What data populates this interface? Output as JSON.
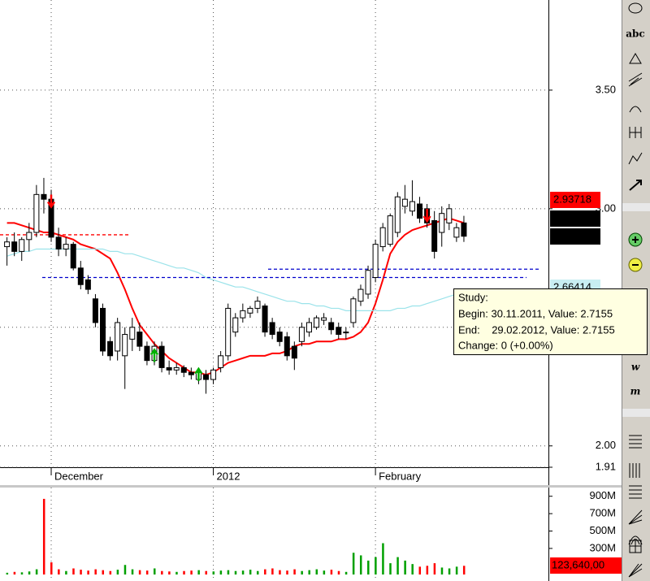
{
  "chart_data": [
    {
      "type": "candlestick",
      "categories": [
        null,
        null,
        null,
        null,
        null,
        null,
        "December",
        null,
        null,
        null,
        null,
        null,
        null,
        null,
        null,
        null,
        null,
        null,
        null,
        null,
        null,
        null,
        null,
        null,
        null,
        null,
        null,
        null,
        "2012",
        null,
        null,
        null,
        null,
        null,
        null,
        null,
        null,
        null,
        null,
        null,
        null,
        null,
        null,
        null,
        null,
        null,
        null,
        null,
        null,
        null,
        "February",
        null,
        null,
        null,
        null,
        null,
        null,
        null,
        null,
        null,
        null,
        null,
        null
      ],
      "open": [
        2.84,
        2.86,
        2.82,
        2.87,
        2.9,
        3.06,
        3.04,
        2.88,
        2.83,
        2.85,
        2.75,
        2.7,
        2.62,
        2.58,
        2.44,
        2.4,
        2.38,
        2.45,
        2.48,
        2.42,
        2.36,
        2.42,
        2.33,
        2.32,
        2.33,
        2.31,
        2.28,
        2.3,
        2.28,
        2.33,
        2.38,
        2.48,
        2.54,
        2.56,
        2.58,
        2.59,
        2.52,
        2.48,
        2.46,
        2.42,
        2.44,
        2.48,
        2.5,
        2.53,
        2.52,
        2.5,
        2.48,
        2.52,
        2.61,
        2.64,
        2.71,
        2.84,
        2.85,
        2.9,
        3.01,
        2.99,
        3.02,
        3.0,
        2.95,
        2.9,
        2.94,
        2.88,
        2.94
      ],
      "high": [
        2.88,
        2.9,
        2.88,
        2.94,
        3.1,
        3.13,
        3.08,
        2.92,
        2.88,
        2.86,
        2.78,
        2.72,
        2.64,
        2.6,
        2.46,
        2.54,
        2.5,
        2.54,
        2.52,
        2.44,
        2.44,
        2.44,
        2.36,
        2.35,
        2.34,
        2.33,
        2.33,
        2.32,
        2.33,
        2.4,
        2.6,
        2.56,
        2.6,
        2.59,
        2.63,
        2.6,
        2.54,
        2.5,
        2.48,
        2.44,
        2.52,
        2.54,
        2.55,
        2.56,
        2.54,
        2.52,
        2.5,
        2.63,
        2.68,
        2.76,
        2.87,
        2.94,
        2.98,
        3.07,
        3.1,
        3.12,
        3.05,
        3.02,
        2.99,
        3.01,
        3.02,
        2.94,
        2.97
      ],
      "low": [
        2.76,
        2.8,
        2.78,
        2.82,
        2.88,
        2.98,
        2.86,
        2.8,
        2.8,
        2.74,
        2.66,
        2.64,
        2.5,
        2.38,
        2.36,
        2.36,
        2.24,
        2.4,
        2.4,
        2.34,
        2.34,
        2.31,
        2.3,
        2.3,
        2.29,
        2.28,
        2.26,
        2.22,
        2.26,
        2.31,
        2.36,
        2.46,
        2.52,
        2.54,
        2.56,
        2.46,
        2.45,
        2.42,
        2.36,
        2.32,
        2.42,
        2.46,
        2.49,
        2.51,
        2.47,
        2.45,
        2.45,
        2.5,
        2.59,
        2.62,
        2.69,
        2.82,
        2.84,
        2.88,
        2.98,
        2.97,
        2.94,
        2.92,
        2.79,
        2.84,
        2.91,
        2.86,
        2.86
      ],
      "close": [
        2.86,
        2.82,
        2.87,
        2.9,
        3.06,
        3.04,
        2.88,
        2.83,
        2.85,
        2.75,
        2.68,
        2.66,
        2.52,
        2.4,
        2.38,
        2.52,
        2.47,
        2.5,
        2.42,
        2.36,
        2.42,
        2.33,
        2.32,
        2.33,
        2.31,
        2.3,
        2.31,
        2.28,
        2.32,
        2.38,
        2.58,
        2.54,
        2.57,
        2.58,
        2.61,
        2.48,
        2.47,
        2.44,
        2.38,
        2.37,
        2.5,
        2.52,
        2.54,
        2.54,
        2.49,
        2.47,
        2.48,
        2.62,
        2.66,
        2.74,
        2.85,
        2.92,
        2.97,
        3.05,
        3.04,
        3.03,
        2.96,
        2.94,
        2.82,
        2.98,
        3.0,
        2.92,
        2.884
      ],
      "series": [
        {
          "color": "#ff0000",
          "values": [
            2.94,
            2.94,
            2.93,
            2.92,
            2.91,
            2.9,
            2.9,
            2.89,
            2.88,
            2.87,
            2.85,
            2.84,
            2.83,
            2.81,
            2.79,
            2.73,
            2.66,
            2.58,
            2.51,
            2.47,
            2.43,
            2.4,
            2.37,
            2.35,
            2.33,
            2.31,
            2.31,
            2.3,
            2.31,
            2.33,
            2.35,
            2.36,
            2.37,
            2.38,
            2.38,
            2.38,
            2.39,
            2.39,
            2.4,
            2.42,
            2.43,
            2.43,
            2.44,
            2.44,
            2.44,
            2.45,
            2.45,
            2.46,
            2.48,
            2.52,
            2.6,
            2.7,
            2.81,
            2.86,
            2.89,
            2.91,
            2.92,
            2.93,
            2.94,
            2.95,
            2.96,
            2.95,
            2.94
          ]
        },
        {
          "color": "#9be3ea",
          "values": [
            2.8,
            2.81,
            2.82,
            2.82,
            2.83,
            2.83,
            2.83,
            2.83,
            2.83,
            2.83,
            2.83,
            2.83,
            2.83,
            2.83,
            2.82,
            2.82,
            2.81,
            2.81,
            2.8,
            2.79,
            2.78,
            2.77,
            2.76,
            2.75,
            2.75,
            2.74,
            2.73,
            2.71,
            2.7,
            2.69,
            2.68,
            2.67,
            2.67,
            2.66,
            2.65,
            2.64,
            2.63,
            2.62,
            2.61,
            2.61,
            2.6,
            2.6,
            2.59,
            2.59,
            2.58,
            2.58,
            2.57,
            2.57,
            2.57,
            2.57,
            2.57,
            2.57,
            2.57,
            2.58,
            2.58,
            2.59,
            2.59,
            2.6,
            2.61,
            2.62,
            2.63,
            2.64,
            2.66
          ]
        }
      ],
      "levels": [
        {
          "value": 2.89,
          "color": "#ff0000"
        },
        {
          "value": 2.745,
          "color": "#0000cc"
        },
        {
          "value": 2.71,
          "color": "#0000cc"
        }
      ],
      "signals": {
        "buy": [
          20,
          26
        ],
        "sell": [
          6,
          57
        ]
      },
      "ylim": [
        1.91,
        3.88
      ],
      "yticks": [
        {
          "value": 3.5,
          "label": "3.50"
        },
        {
          "value": 3.0,
          "label": "3.00"
        },
        {
          "value": 2.5,
          "label": "2.50"
        },
        {
          "value": 2.0,
          "label": "2.00"
        },
        {
          "value": 1.91,
          "label": "1.91"
        }
      ],
      "last_value_labels": [
        {
          "value": 2.93718,
          "color": "#ff0000"
        },
        {
          "value": 2.884,
          "color": "#000000"
        },
        {
          "value": 2.884,
          "color": "#000000"
        },
        {
          "value": 2.66414,
          "color": "#c8eef2"
        }
      ],
      "tooltip": [
        "Study:",
        "Begin: 30.11.2011, Value: 2.7155",
        "End:    29.02.2012, Value: 2.7155",
        "Change: 0 (+0.00%)"
      ],
      "grid": true
    },
    {
      "type": "bar",
      "values": [
        20000000,
        30000000,
        25000000,
        35000000,
        60000000,
        870000000,
        140000000,
        60000000,
        40000000,
        70000000,
        55000000,
        45000000,
        60000000,
        50000000,
        40000000,
        55000000,
        110000000,
        60000000,
        50000000,
        45000000,
        70000000,
        40000000,
        35000000,
        30000000,
        40000000,
        45000000,
        50000000,
        40000000,
        35000000,
        45000000,
        50000000,
        40000000,
        45000000,
        55000000,
        40000000,
        60000000,
        70000000,
        50000000,
        45000000,
        60000000,
        40000000,
        50000000,
        60000000,
        45000000,
        55000000,
        40000000,
        30000000,
        250000000,
        220000000,
        160000000,
        200000000,
        360000000,
        130000000,
        200000000,
        160000000,
        120000000,
        90000000,
        100000000,
        130000000,
        80000000,
        70000000,
        90000000,
        100000000
      ],
      "up_color": "#00a000",
      "down_color": "#ff0000",
      "ylim": [
        0,
        1000000000
      ],
      "yticks": [
        {
          "value": 900000000,
          "label": "900M"
        },
        {
          "value": 700000000,
          "label": "700M"
        },
        {
          "value": 500000000,
          "label": "500M"
        },
        {
          "value": 300000000,
          "label": "300M"
        }
      ],
      "current_label": "123,640,00"
    }
  ],
  "toolbar": {
    "items": [
      "abc",
      "w",
      "m"
    ]
  }
}
